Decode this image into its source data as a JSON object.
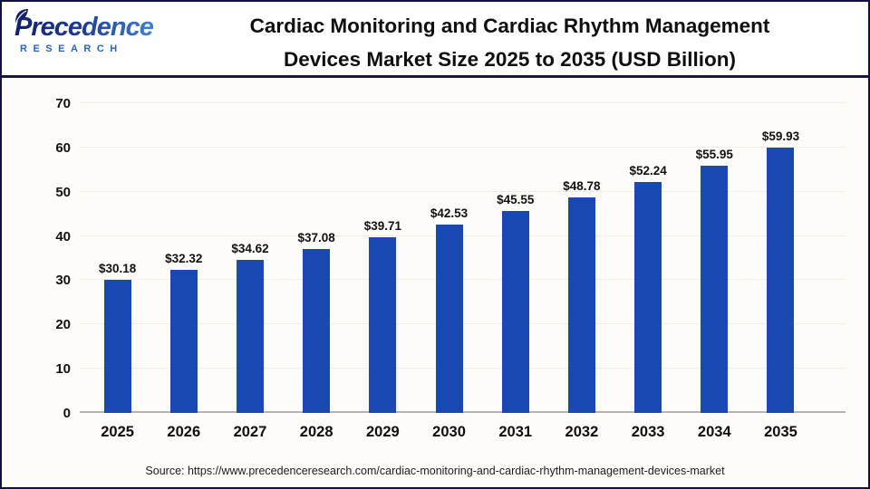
{
  "logo": {
    "name": "Precedence",
    "subtitle": "RESEARCH"
  },
  "header": {
    "title_line1": "Cardiac Monitoring and Cardiac Rhythm Management",
    "title_line2": "Devices Market Size 2025 to 2035 (USD Billion)"
  },
  "source": "Source: https://www.precedenceresearch.com/cardiac-monitoring-and-cardiac-rhythm-management-devices-market",
  "colors": {
    "bar": "#1b47b0",
    "border": "#12123c",
    "divider": "#15154b",
    "gridline": "#efede8",
    "baseline": "#b3b3b3",
    "logo_dark": "#14216b",
    "logo_light": "#3d7fd6",
    "logo_sub": "#2a62c9"
  },
  "chart_data": {
    "type": "bar",
    "title": "Cardiac Monitoring and Cardiac Rhythm Management Devices Market Size 2025 to 2035 (USD Billion)",
    "categories": [
      "2025",
      "2026",
      "2027",
      "2028",
      "2029",
      "2030",
      "2031",
      "2032",
      "2033",
      "2034",
      "2035"
    ],
    "values": [
      30.18,
      32.32,
      34.62,
      37.08,
      39.71,
      42.53,
      45.55,
      48.78,
      52.24,
      55.95,
      59.93
    ],
    "value_labels": [
      "$30.18",
      "$32.32",
      "$34.62",
      "$37.08",
      "$39.71",
      "$42.53",
      "$45.55",
      "$48.78",
      "$52.24",
      "$55.95",
      "$59.93"
    ],
    "xlabel": "",
    "ylabel": "",
    "ylim": [
      0,
      70
    ],
    "yticks": [
      0,
      10,
      20,
      30,
      40,
      50,
      60,
      70
    ],
    "grid": true,
    "legend": false,
    "bar_color": "#1b47b0"
  }
}
